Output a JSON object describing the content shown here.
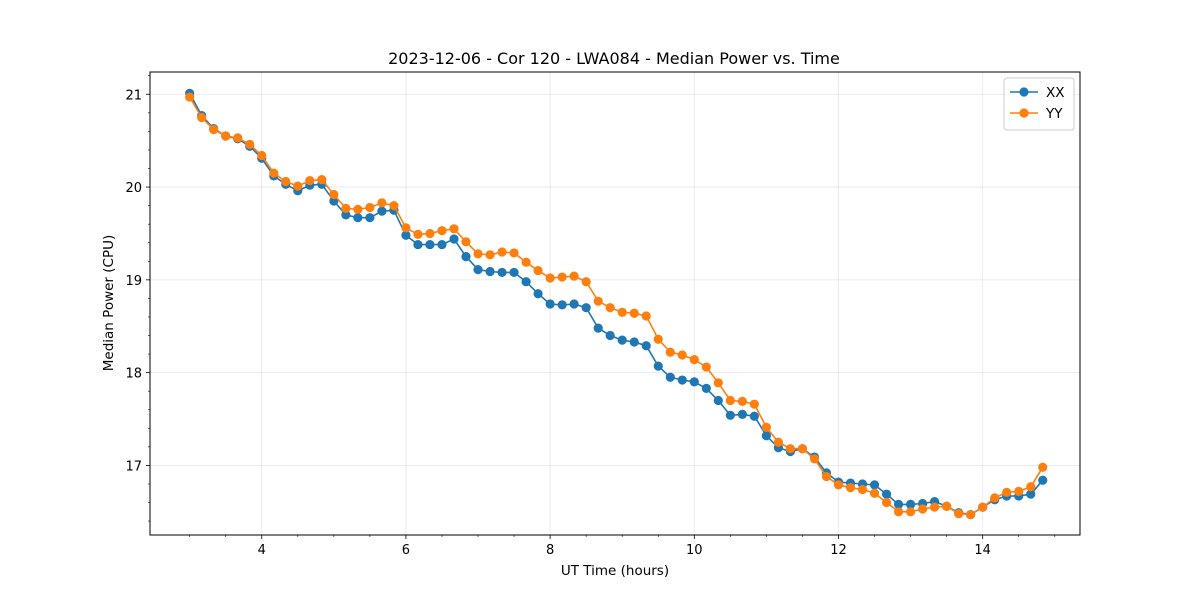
{
  "chart_data": {
    "type": "line",
    "title": "2023-12-06 - Cor 120 - LWA084 - Median Power vs. Time",
    "xlabel": "UT Time (hours)",
    "ylabel": "Median Power (CPU)",
    "xlim": [
      2.45,
      15.35
    ],
    "ylim": [
      16.25,
      21.24
    ],
    "xticks": [
      4,
      6,
      8,
      10,
      12,
      14
    ],
    "yticks": [
      17,
      18,
      19,
      20,
      21
    ],
    "grid": true,
    "legend_position": "top-right",
    "x": [
      3.0,
      3.167,
      3.333,
      3.5,
      3.667,
      3.833,
      4.0,
      4.167,
      4.333,
      4.5,
      4.667,
      4.833,
      5.0,
      5.167,
      5.333,
      5.5,
      5.667,
      5.833,
      6.0,
      6.167,
      6.333,
      6.5,
      6.667,
      6.833,
      7.0,
      7.167,
      7.333,
      7.5,
      7.667,
      7.833,
      8.0,
      8.167,
      8.333,
      8.5,
      8.667,
      8.833,
      9.0,
      9.167,
      9.333,
      9.5,
      9.667,
      9.833,
      10.0,
      10.167,
      10.333,
      10.5,
      10.667,
      10.833,
      11.0,
      11.167,
      11.333,
      11.5,
      11.667,
      11.833,
      12.0,
      12.167,
      12.333,
      12.5,
      12.667,
      12.833,
      13.0,
      13.167,
      13.333,
      13.5,
      13.667,
      13.833,
      14.0,
      14.167,
      14.333,
      14.5,
      14.667,
      14.833
    ],
    "series": [
      {
        "name": "XX",
        "color": "#1f77b4",
        "values": [
          21.01,
          20.77,
          20.63,
          20.55,
          20.52,
          20.44,
          20.31,
          20.12,
          20.03,
          19.96,
          20.02,
          20.03,
          19.85,
          19.7,
          19.67,
          19.67,
          19.74,
          19.75,
          19.48,
          19.38,
          19.38,
          19.38,
          19.44,
          19.25,
          19.11,
          19.09,
          19.08,
          19.08,
          18.98,
          18.85,
          18.74,
          18.73,
          18.74,
          18.7,
          18.48,
          18.4,
          18.35,
          18.33,
          18.29,
          18.07,
          17.95,
          17.92,
          17.9,
          17.83,
          17.7,
          17.54,
          17.55,
          17.53,
          17.32,
          17.19,
          17.15,
          17.18,
          17.09,
          16.92,
          16.82,
          16.81,
          16.8,
          16.79,
          16.69,
          16.58,
          16.58,
          16.59,
          16.61,
          16.56,
          16.49,
          16.47,
          16.55,
          16.63,
          16.67,
          16.67,
          16.69,
          16.84
        ]
      },
      {
        "name": "YY",
        "color": "#ff7f0e",
        "values": [
          20.97,
          20.75,
          20.62,
          20.55,
          20.53,
          20.46,
          20.34,
          20.15,
          20.06,
          20.01,
          20.07,
          20.08,
          19.92,
          19.77,
          19.76,
          19.78,
          19.83,
          19.8,
          19.56,
          19.49,
          19.5,
          19.53,
          19.55,
          19.41,
          19.28,
          19.27,
          19.3,
          19.29,
          19.19,
          19.1,
          19.02,
          19.03,
          19.04,
          18.98,
          18.77,
          18.7,
          18.65,
          18.64,
          18.61,
          18.36,
          18.22,
          18.19,
          18.14,
          18.06,
          17.89,
          17.7,
          17.69,
          17.66,
          17.41,
          17.25,
          17.18,
          17.18,
          17.07,
          16.88,
          16.79,
          16.76,
          16.74,
          16.7,
          16.6,
          16.5,
          16.5,
          16.53,
          16.55,
          16.56,
          16.48,
          16.47,
          16.55,
          16.65,
          16.71,
          16.72,
          16.77,
          16.98
        ]
      }
    ]
  }
}
